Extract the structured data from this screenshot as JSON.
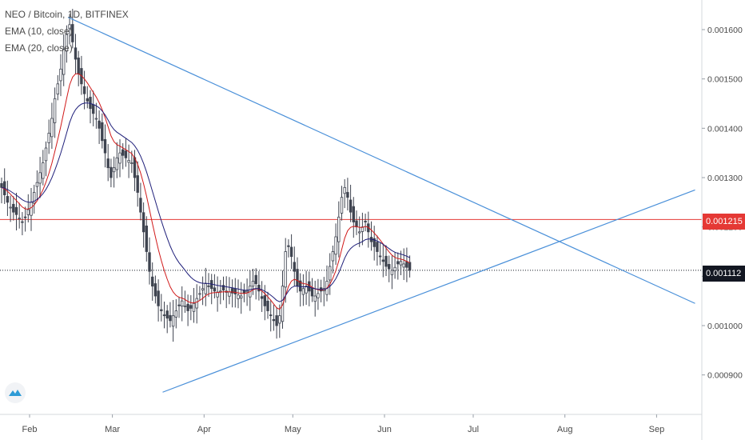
{
  "header": {
    "symbol_line": "NEO / Bitcoin, 1D, BITFINEX",
    "indicators": [
      "EMA (10, close)",
      "EMA (20, close)"
    ]
  },
  "colors": {
    "up": "#7e8794",
    "down": "#3f4450",
    "ema10": "#d11a1a",
    "ema20": "#1f1f7a",
    "trendline": "#4a90d9",
    "level_line": "#e53935",
    "last_line": "#131722",
    "axis_text": "#4a4a4a"
  },
  "price_tags": {
    "level": "0.001215",
    "last": "0.001112"
  },
  "logo_icon": "tradingview-cloud-icon",
  "chart_data": {
    "type": "candlestick",
    "x_ticks": [
      "Feb",
      "Mar",
      "Apr",
      "May",
      "Jun",
      "Jul",
      "Aug",
      "Sep"
    ],
    "y_ticks": [
      "0.001600",
      "0.001500",
      "0.001400",
      "0.001300",
      "0.001200",
      "0.001100",
      "0.001000",
      "0.000900"
    ],
    "ylim": [
      0.00082,
      0.00166
    ],
    "x_range": [
      "2019-01-22",
      "2019-09-15"
    ],
    "horizontal_levels": [
      {
        "value": 0.001215,
        "style": "red-solid"
      },
      {
        "value": 0.001112,
        "style": "black-dotted"
      }
    ],
    "trendlines": [
      {
        "from": {
          "date": "2019-02-14",
          "value": 0.001625
        },
        "to": {
          "date": "2019-09-14",
          "value": 0.001045
        }
      },
      {
        "from": {
          "date": "2019-03-18",
          "value": 0.000865
        },
        "to": {
          "date": "2019-09-14",
          "value": 0.001275
        }
      }
    ],
    "close_series": [
      0.00128,
      0.001265,
      0.00125,
      0.00124,
      0.00123,
      0.001225,
      0.001218,
      0.00121,
      0.00122,
      0.001235,
      0.00125,
      0.00127,
      0.00129,
      0.00131,
      0.00133,
      0.00136,
      0.00139,
      0.00142,
      0.00146,
      0.00149,
      0.00152,
      0.00156,
      0.00159,
      0.00161,
      0.001575,
      0.00154,
      0.00151,
      0.00149,
      0.00147,
      0.001455,
      0.00144,
      0.00143,
      0.00142,
      0.0014,
      0.001375,
      0.00135,
      0.00132,
      0.0013,
      0.00132,
      0.00134,
      0.00135,
      0.001345,
      0.00134,
      0.001335,
      0.00133,
      0.0013,
      0.00127,
      0.00123,
      0.00119,
      0.00115,
      0.00111,
      0.00108,
      0.00106,
      0.00104,
      0.00103,
      0.00102,
      0.001015,
      0.00101,
      0.00102,
      0.00103,
      0.00104,
      0.00105,
      0.00104,
      0.00103,
      0.001035,
      0.001045,
      0.001055,
      0.001065,
      0.001075,
      0.001085,
      0.00108,
      0.001075,
      0.00107,
      0.001068,
      0.00107,
      0.001072,
      0.00107,
      0.001068,
      0.001066,
      0.001064,
      0.001062,
      0.00106,
      0.001065,
      0.00107,
      0.00108,
      0.00109,
      0.001085,
      0.00107,
      0.001055,
      0.00104,
      0.00103,
      0.00102,
      0.00101,
      0.001,
      0.00102,
      0.00108,
      0.00115,
      0.00116,
      0.00114,
      0.00111,
      0.00108,
      0.00107,
      0.001075,
      0.00108,
      0.00107,
      0.00106,
      0.00106,
      0.001065,
      0.00107,
      0.001075,
      0.00109,
      0.00112,
      0.00115,
      0.00118,
      0.00122,
      0.00126,
      0.00128,
      0.00126,
      0.00123,
      0.00121,
      0.0012,
      0.00119,
      0.0012,
      0.00121,
      0.00119,
      0.00117,
      0.00116,
      0.00115,
      0.00114,
      0.00113,
      0.00112,
      0.001115,
      0.001112,
      0.001118,
      0.001125,
      0.00113,
      0.001125,
      0.001118,
      0.001112
    ],
    "series": [
      {
        "name": "EMA (10, close)",
        "period": 10
      },
      {
        "name": "EMA (20, close)",
        "period": 20
      }
    ]
  }
}
